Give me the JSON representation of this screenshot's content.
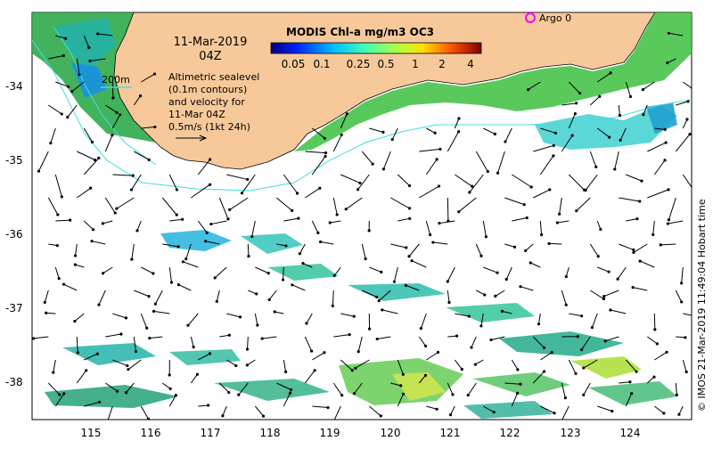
{
  "date_title": "11-Mar-2019",
  "time_title": "04Z",
  "scale_bar_label": "200m",
  "legend_title": "MODIS Chl-a mg/m3 OC3",
  "legend_ticks": [
    "0.05",
    "0.1",
    "0.25",
    "0.5",
    "1",
    "2",
    "4"
  ],
  "description_lines": [
    "Altimetric sealevel",
    "(0.1m contours)",
    "and velocity for",
    "11-Mar 04Z",
    "0.5m/s (1kt 24h)"
  ],
  "argo_label": "Argo 0",
  "credit": "© IMOS 21-Mar-2019 11:49:04 Hobart time",
  "x_ticks": [
    "115",
    "116",
    "117",
    "118",
    "119",
    "120",
    "121",
    "122",
    "123",
    "124"
  ],
  "y_ticks": [
    "-34",
    "-35",
    "-36",
    "-37",
    "-38"
  ],
  "colors": {
    "land": "#f7c99a",
    "ocean": "#ffffff",
    "isobath": "#40e0e0",
    "argo_marker": "#ff00ff",
    "arrow": "#000000"
  }
}
